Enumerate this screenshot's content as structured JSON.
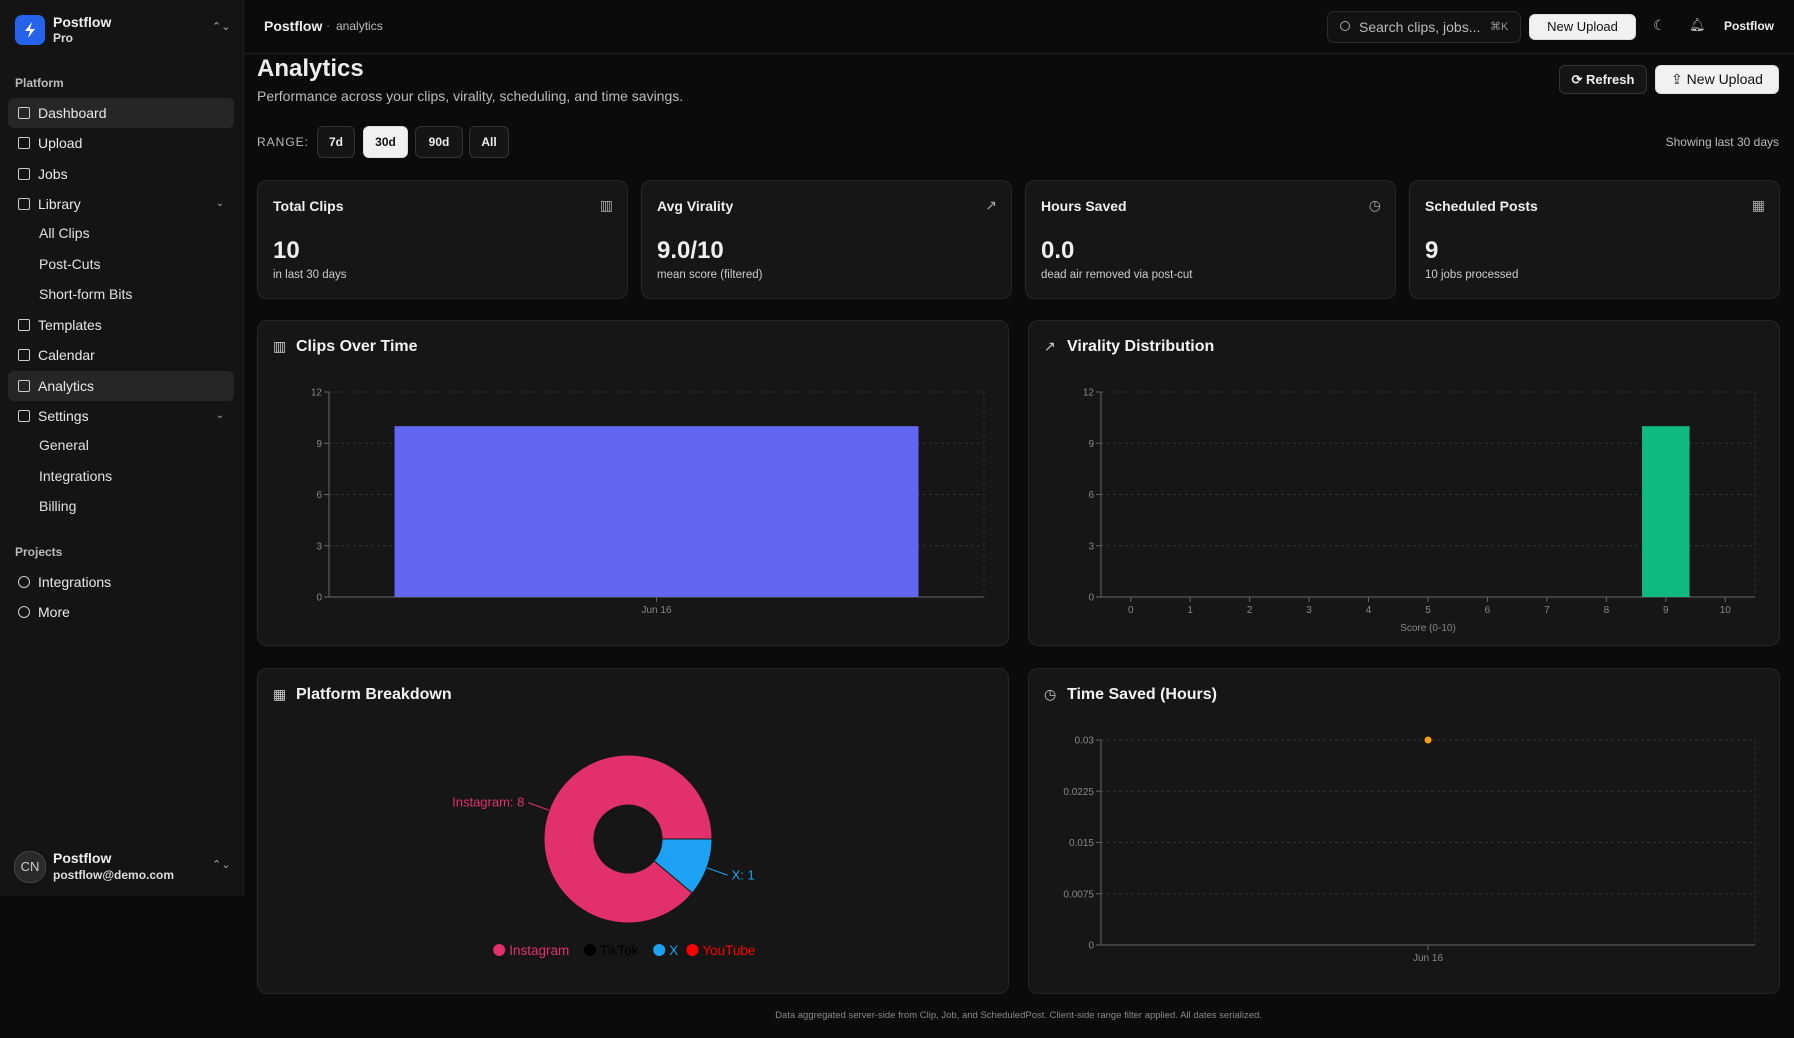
{
  "brand": {
    "name": "Postflow",
    "plan": "Pro"
  },
  "sidebar": {
    "platform_title": "Platform",
    "nav": [
      {
        "label": "Dashboard"
      },
      {
        "label": "Upload"
      },
      {
        "label": "Jobs"
      },
      {
        "label": "Library",
        "children": [
          "All Clips",
          "Post-Cuts",
          "Short-form Bits"
        ]
      },
      {
        "label": "Templates"
      },
      {
        "label": "Calendar"
      },
      {
        "label": "Analytics"
      },
      {
        "label": "Settings",
        "children": [
          "General",
          "Integrations",
          "Billing"
        ]
      }
    ],
    "projects_title": "Projects",
    "projects": [
      "Integrations",
      "More"
    ],
    "user": {
      "initials": "CN",
      "name": "Postflow",
      "email": "postflow@demo.com"
    }
  },
  "topbar": {
    "breadcrumb": [
      "Postflow",
      "analytics"
    ],
    "search": "Search clips, jobs...",
    "shortcut": "⌘K",
    "upload": "New Upload",
    "account": "Postflow"
  },
  "page": {
    "title": "Analytics",
    "subtitle": "Performance across your clips, virality, scheduling, and time savings.",
    "refresh": "Refresh",
    "upload": "New Upload",
    "range_label": "RANGE:",
    "ranges": [
      "7d",
      "30d",
      "90d",
      "All"
    ],
    "range_note": "Showing last 30 days"
  },
  "stats": [
    {
      "label": "Total Clips",
      "value": "10",
      "note": "in last 30 days"
    },
    {
      "label": "Avg Virality",
      "value": "9.0/10",
      "note": "mean score (filtered)"
    },
    {
      "label": "Hours Saved",
      "value": "0.0",
      "note": "dead air removed via post-cut"
    },
    {
      "label": "Scheduled Posts",
      "value": "9",
      "note": "10 jobs processed"
    }
  ],
  "chart_data": [
    {
      "type": "bar",
      "title": "Clips Over Time",
      "categories": [
        "Jun 16"
      ],
      "values": [
        10
      ],
      "color": "#6366f1",
      "ylim": [
        0,
        12
      ],
      "yticks": [
        0,
        3,
        6,
        9,
        12
      ],
      "grid": true
    },
    {
      "type": "bar",
      "title": "Virality Distribution",
      "x_label": "Score (0-10)",
      "categories": [
        "0",
        "1",
        "2",
        "3",
        "4",
        "5",
        "6",
        "7",
        "8",
        "9",
        "10"
      ],
      "values": [
        0,
        0,
        0,
        0,
        0,
        0,
        0,
        0,
        0,
        10,
        0
      ],
      "color": "#10b981",
      "ylim": [
        0,
        12
      ],
      "yticks": [
        0,
        3,
        6,
        9,
        12
      ],
      "grid": true
    },
    {
      "type": "pie",
      "title": "Platform Breakdown",
      "categories": [
        "Instagram",
        "TikTok",
        "X",
        "YouTube"
      ],
      "values": [
        8,
        0,
        1,
        0
      ],
      "value_labels": [
        "Instagram: 8",
        null,
        "X: 1",
        null
      ],
      "colors": [
        "#e1306c",
        "#000000",
        "#1da1f2",
        "#ff0000"
      ]
    },
    {
      "type": "line",
      "title": "Time Saved (Hours)",
      "categories": [
        "Jun 16"
      ],
      "values": [
        0.03
      ],
      "color": "#f59e0b",
      "ylim": [
        0,
        0.03
      ],
      "yticks": [
        0,
        0.0075,
        0.015,
        0.0225,
        0.03
      ],
      "grid": true
    }
  ],
  "footer": "Data aggregated server-side from Clip, Job, and ScheduledPost. Client-side range filter applied. All dates serialized."
}
